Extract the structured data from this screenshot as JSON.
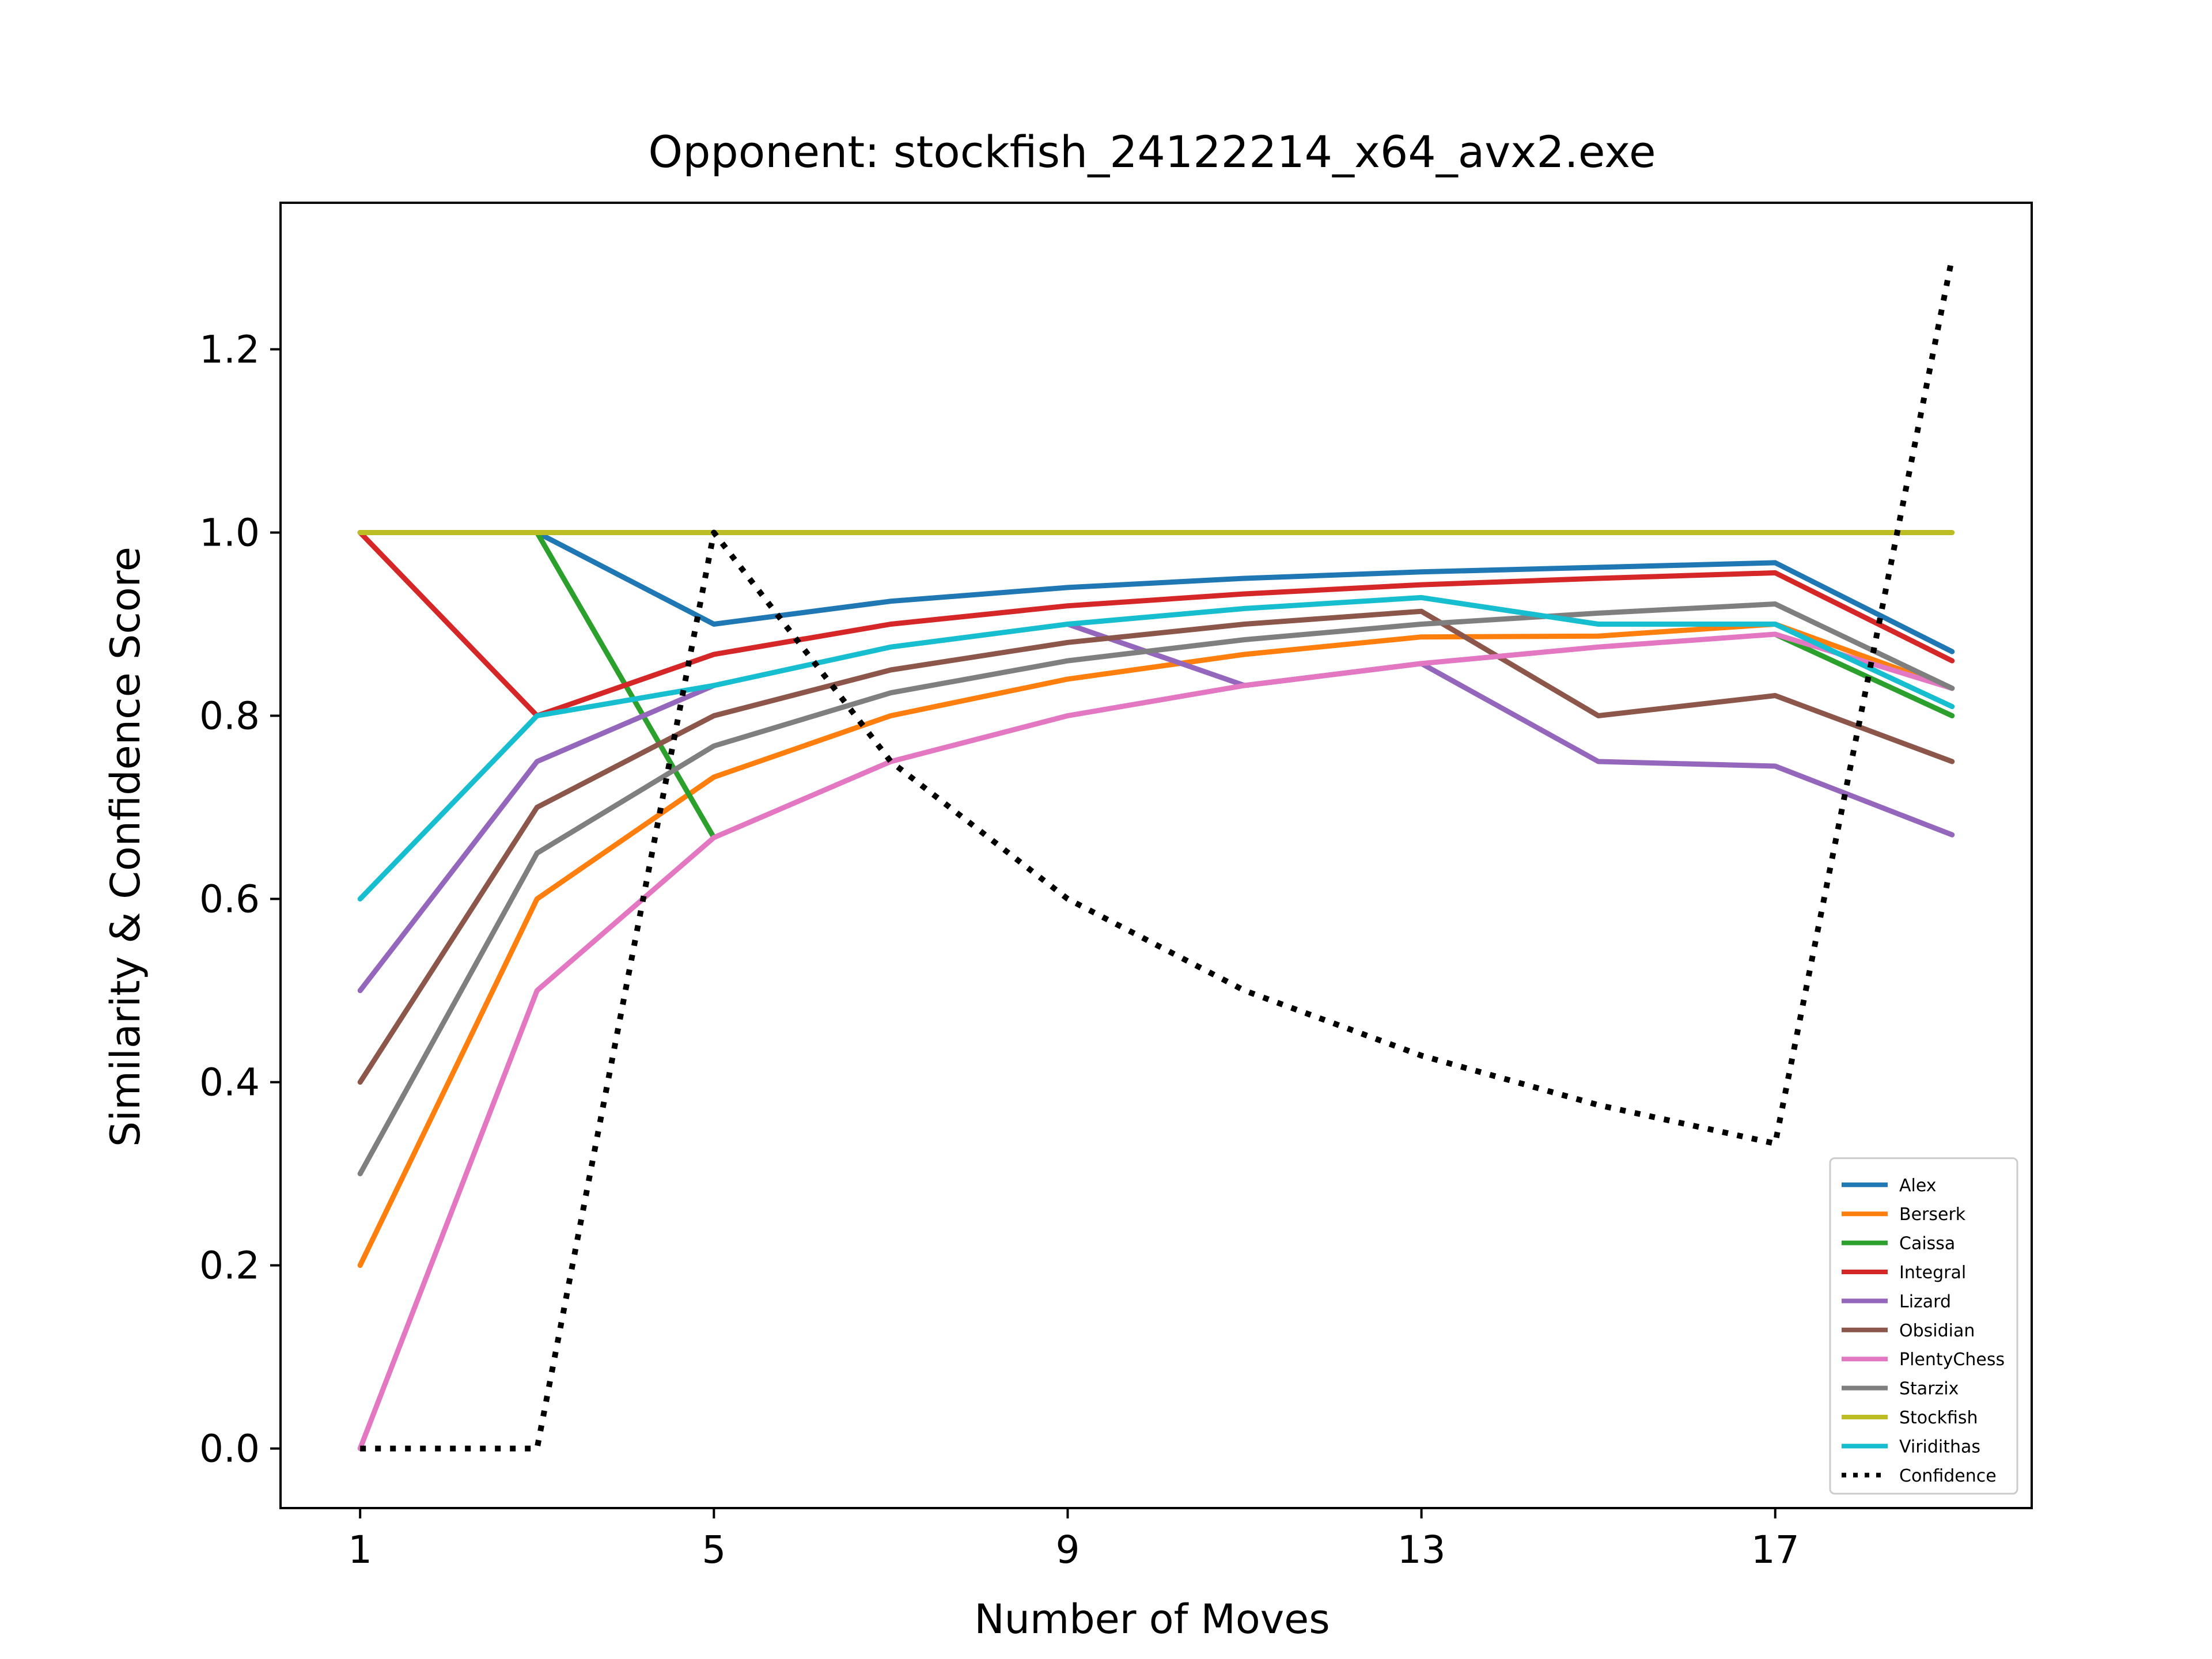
{
  "chart_data": {
    "type": "line",
    "title": "Opponent: stockfish_24122214_x64_avx2.exe",
    "xlabel": "Number of Moves",
    "ylabel": "Similarity & Confidence Score",
    "x": [
      1,
      3,
      5,
      7,
      9,
      11,
      13,
      15,
      17,
      19
    ],
    "xticks": [
      1,
      5,
      9,
      13,
      17
    ],
    "yticks": [
      0.0,
      0.2,
      0.4,
      0.6,
      0.8,
      1.0,
      1.2
    ],
    "xlim": [
      0.1,
      19.9
    ],
    "ylim": [
      -0.065,
      1.36
    ],
    "grid": false,
    "legend_position": "lower-right",
    "series": [
      {
        "name": "Alex",
        "color": "#1f77b4",
        "style": "solid",
        "values": [
          1.0,
          1.0,
          0.9,
          0.925,
          0.94,
          0.95,
          0.957,
          0.962,
          0.967,
          0.87
        ]
      },
      {
        "name": "Berserk",
        "color": "#ff7f0e",
        "style": "solid",
        "values": [
          0.2,
          0.6,
          0.733,
          0.8,
          0.84,
          0.867,
          0.886,
          0.887,
          0.9,
          0.83
        ]
      },
      {
        "name": "Caissa",
        "color": "#2ca02c",
        "style": "solid",
        "values": [
          1.0,
          1.0,
          0.667,
          null,
          null,
          null,
          null,
          null,
          0.889,
          0.8
        ]
      },
      {
        "name": "Integral",
        "color": "#d62728",
        "style": "solid",
        "values": [
          1.0,
          0.8,
          0.867,
          0.9,
          0.92,
          0.933,
          0.943,
          0.95,
          0.956,
          0.86
        ]
      },
      {
        "name": "Lizard",
        "color": "#9467bd",
        "style": "solid",
        "values": [
          0.5,
          0.75,
          0.833,
          null,
          0.9,
          0.833,
          0.857,
          0.75,
          0.745,
          0.67
        ]
      },
      {
        "name": "Obsidian",
        "color": "#8c564b",
        "style": "solid",
        "values": [
          0.4,
          0.7,
          0.8,
          0.85,
          0.88,
          0.9,
          0.914,
          0.8,
          0.822,
          0.75
        ]
      },
      {
        "name": "PlentyChess",
        "color": "#e377c2",
        "style": "solid",
        "values": [
          0.0,
          0.5,
          0.667,
          0.75,
          0.8,
          0.833,
          0.857,
          0.875,
          0.889,
          0.83
        ]
      },
      {
        "name": "Starzix",
        "color": "#7f7f7f",
        "style": "solid",
        "values": [
          0.3,
          0.65,
          0.767,
          0.825,
          0.86,
          0.883,
          0.9,
          0.912,
          0.922,
          0.83
        ]
      },
      {
        "name": "Stockfish",
        "color": "#bcbd22",
        "style": "solid",
        "values": [
          1.0,
          1.0,
          1.0,
          1.0,
          1.0,
          1.0,
          1.0,
          1.0,
          1.0,
          1.0
        ]
      },
      {
        "name": "Viridithas",
        "color": "#17becf",
        "style": "solid",
        "values": [
          0.6,
          0.8,
          0.833,
          0.875,
          0.9,
          0.917,
          0.929,
          0.9,
          0.9,
          0.81
        ]
      },
      {
        "name": "Confidence",
        "color": "#000000",
        "style": "dotted",
        "values": [
          0.0,
          0.0,
          1.0,
          0.75,
          0.6,
          0.5,
          0.429,
          0.375,
          0.333,
          1.3
        ]
      }
    ]
  }
}
